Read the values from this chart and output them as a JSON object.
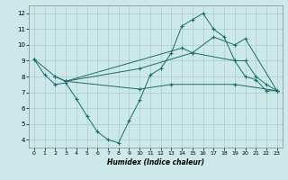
{
  "xlabel": "Humidex (Indice chaleur)",
  "bg_color": "#cce8e8",
  "grid_color": "#aacccc",
  "line_color": "#1a6b6b",
  "line1_x": [
    0,
    1,
    2,
    3,
    4,
    5,
    6,
    7,
    8,
    9,
    10,
    11,
    12,
    13,
    14,
    15,
    16,
    17,
    18,
    19,
    20,
    21,
    22,
    23
  ],
  "line1_y": [
    9.1,
    8.1,
    7.5,
    7.6,
    6.6,
    5.5,
    4.5,
    4.0,
    3.8,
    5.2,
    6.5,
    8.1,
    8.5,
    9.5,
    11.2,
    11.6,
    12.0,
    11.0,
    10.5,
    9.0,
    8.0,
    7.8,
    7.1,
    7.1
  ],
  "line2_x": [
    0,
    2,
    3,
    10,
    15,
    17,
    19,
    20,
    23
  ],
  "line2_y": [
    9.1,
    8.0,
    7.7,
    8.5,
    9.5,
    10.5,
    10.0,
    10.4,
    7.1
  ],
  "line3_x": [
    3,
    10,
    13,
    19,
    23
  ],
  "line3_y": [
    7.7,
    7.2,
    7.5,
    7.5,
    7.1
  ],
  "line4_x": [
    2,
    3,
    14,
    15,
    19,
    20,
    21,
    22,
    23
  ],
  "line4_y": [
    8.0,
    7.7,
    9.8,
    9.5,
    9.0,
    9.0,
    8.0,
    7.5,
    7.1
  ],
  "xlim": [
    -0.5,
    23.5
  ],
  "ylim": [
    3.5,
    12.5
  ],
  "yticks": [
    4,
    5,
    6,
    7,
    8,
    9,
    10,
    11,
    12
  ],
  "xticks": [
    0,
    1,
    2,
    3,
    4,
    5,
    6,
    7,
    8,
    9,
    10,
    11,
    12,
    13,
    14,
    15,
    16,
    17,
    18,
    19,
    20,
    21,
    22,
    23
  ]
}
